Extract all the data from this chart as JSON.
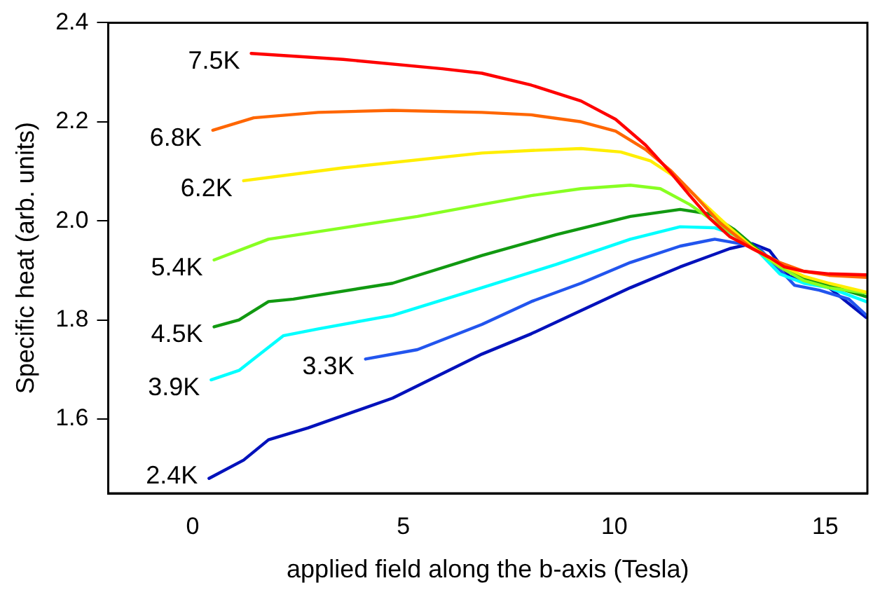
{
  "chart_data": {
    "type": "line",
    "xlabel": "applied field along the b-axis (Tesla)",
    "ylabel": "Specific heat (arb. units)",
    "xlim": [
      -2,
      16
    ],
    "xticks": [
      0,
      5,
      10,
      15
    ],
    "ylim": [
      1.45,
      2.4
    ],
    "yticks": [
      1.6,
      1.8,
      {
        "value": 2,
        "label": "2.0"
      },
      2.2,
      2.4
    ],
    "grid": false,
    "legend": false,
    "marker": "none",
    "line_style": "solid",
    "series": [
      {
        "name": "7.5K",
        "color": "#ff0000",
        "x": [
          1.39,
          3.57,
          5.92,
          6.86,
          8.03,
          9.21,
          10.03,
          10.74,
          11.33,
          11.79,
          12.26,
          12.74,
          13.27,
          13.68,
          14.03,
          14.5,
          15.09,
          15.97
        ],
        "values": [
          2.338,
          2.326,
          2.307,
          2.298,
          2.274,
          2.242,
          2.205,
          2.153,
          2.098,
          2.051,
          2.005,
          1.968,
          1.944,
          1.926,
          1.907,
          1.898,
          1.893,
          1.891
        ]
      },
      {
        "name": "6.8K",
        "color": "#ff6600",
        "x": [
          0.48,
          1.45,
          2.98,
          4.74,
          6.86,
          8.03,
          9.21,
          10.03,
          10.74,
          11.33,
          11.91,
          12.5,
          13.27,
          13.92,
          14.5,
          15.09,
          15.97
        ],
        "values": [
          2.183,
          2.208,
          2.219,
          2.223,
          2.219,
          2.214,
          2.2,
          2.181,
          2.144,
          2.102,
          2.051,
          1.996,
          1.944,
          1.916,
          1.898,
          1.89,
          1.886
        ]
      },
      {
        "name": "6.2K",
        "color": "#ffee00",
        "x": [
          1.21,
          3.57,
          6.86,
          8.03,
          9.21,
          10.15,
          10.86,
          11.45,
          12.03,
          12.74,
          13.27,
          13.92,
          14.5,
          15.09,
          15.97
        ],
        "values": [
          2.081,
          2.107,
          2.137,
          2.142,
          2.146,
          2.139,
          2.121,
          2.088,
          2.042,
          1.986,
          1.947,
          1.912,
          1.888,
          1.874,
          1.856
        ]
      },
      {
        "name": "5.4K",
        "color": "#88ff22",
        "x": [
          0.51,
          1.8,
          3.57,
          5.33,
          6.86,
          8.03,
          9.21,
          10.38,
          11.09,
          11.79,
          12.5,
          13.27,
          13.92,
          14.5,
          15.09,
          15.97
        ],
        "values": [
          1.921,
          1.963,
          1.986,
          2.009,
          2.033,
          2.051,
          2.065,
          2.072,
          2.065,
          2.033,
          1.991,
          1.947,
          1.907,
          1.879,
          1.865,
          1.854
        ]
      },
      {
        "name": "4.5K",
        "color": "#119911",
        "x": [
          0.51,
          1.1,
          1.8,
          2.39,
          4.74,
          6.86,
          8.62,
          10.38,
          11.56,
          12.26,
          12.85,
          13.33,
          13.92,
          14.5,
          15.09,
          15.97
        ],
        "values": [
          1.786,
          1.8,
          1.837,
          1.842,
          1.874,
          1.93,
          1.972,
          2.009,
          2.023,
          2.014,
          1.982,
          1.947,
          1.907,
          1.884,
          1.87,
          1.847
        ]
      },
      {
        "name": "3.9K",
        "color": "#00ffff",
        "x": [
          0.44,
          1.1,
          2.15,
          2.98,
          4.74,
          6.86,
          8.62,
          10.38,
          11.56,
          12.38,
          12.97,
          13.39,
          13.92,
          14.5,
          15.09,
          15.97
        ],
        "values": [
          1.679,
          1.698,
          1.768,
          1.782,
          1.809,
          1.865,
          1.912,
          1.963,
          1.988,
          1.986,
          1.968,
          1.94,
          1.893,
          1.874,
          1.865,
          1.837
        ]
      },
      {
        "name": "3.3K",
        "color": "#2255ee",
        "x": [
          4.1,
          5.33,
          6.86,
          8.03,
          9.21,
          10.38,
          11.56,
          12.38,
          12.97,
          13.44,
          13.92,
          14.27,
          14.86,
          15.56,
          15.97
        ],
        "values": [
          1.721,
          1.74,
          1.791,
          1.837,
          1.874,
          1.916,
          1.949,
          1.963,
          1.954,
          1.944,
          1.902,
          1.87,
          1.86,
          1.842,
          1.81
        ]
      },
      {
        "name": "2.4K",
        "color": "#0011bb",
        "x": [
          0.39,
          1.21,
          1.8,
          2.74,
          4.74,
          6.86,
          8.03,
          9.21,
          10.38,
          11.56,
          12.74,
          13.27,
          13.68,
          14.15,
          15.09,
          15.97
        ],
        "values": [
          1.48,
          1.517,
          1.558,
          1.582,
          1.642,
          1.731,
          1.772,
          1.819,
          1.865,
          1.907,
          1.944,
          1.954,
          1.94,
          1.888,
          1.865,
          1.805
        ]
      }
    ]
  }
}
